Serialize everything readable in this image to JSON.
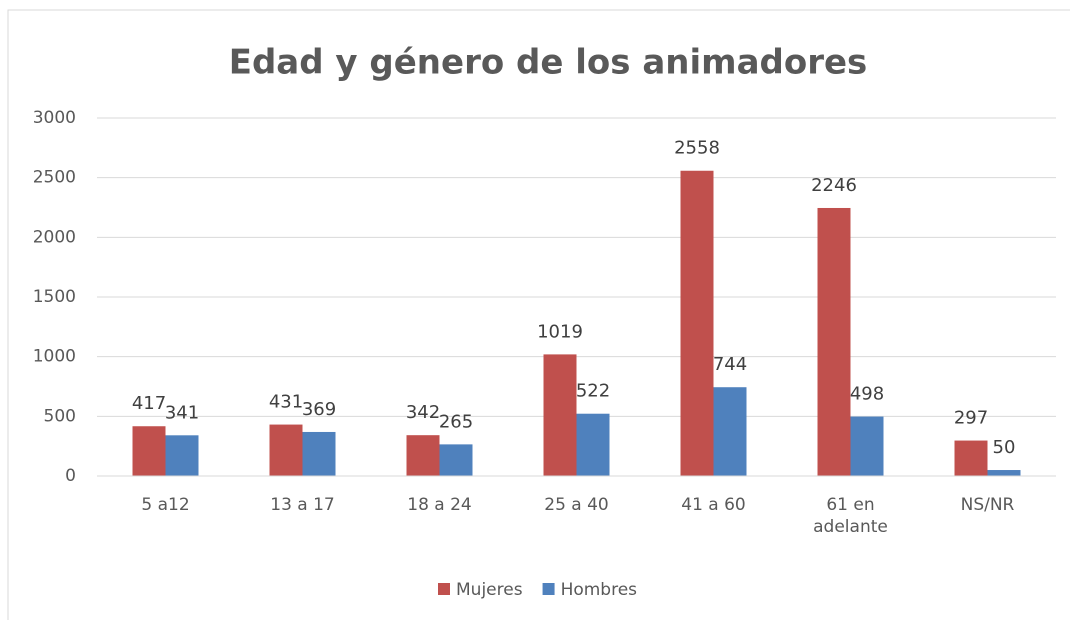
{
  "chart_data": {
    "type": "bar",
    "title": "Edad y género de los animadores",
    "categories": [
      "5 a12",
      "13 a 17",
      "18 a 24",
      "25 a 40",
      "41 a 60",
      "61 en adelante",
      "NS/NR"
    ],
    "series": [
      {
        "name": "Mujeres",
        "color": "#c0504d",
        "values": [
          417,
          431,
          342,
          1019,
          2558,
          2246,
          297
        ]
      },
      {
        "name": "Hombres",
        "color": "#4f81bd",
        "values": [
          341,
          369,
          265,
          522,
          744,
          498,
          50
        ]
      }
    ],
    "ylim": [
      0,
      3000
    ],
    "yticks": [
      0,
      500,
      1000,
      1500,
      2000,
      2500,
      3000
    ],
    "grid": true,
    "legend": "bottom"
  }
}
